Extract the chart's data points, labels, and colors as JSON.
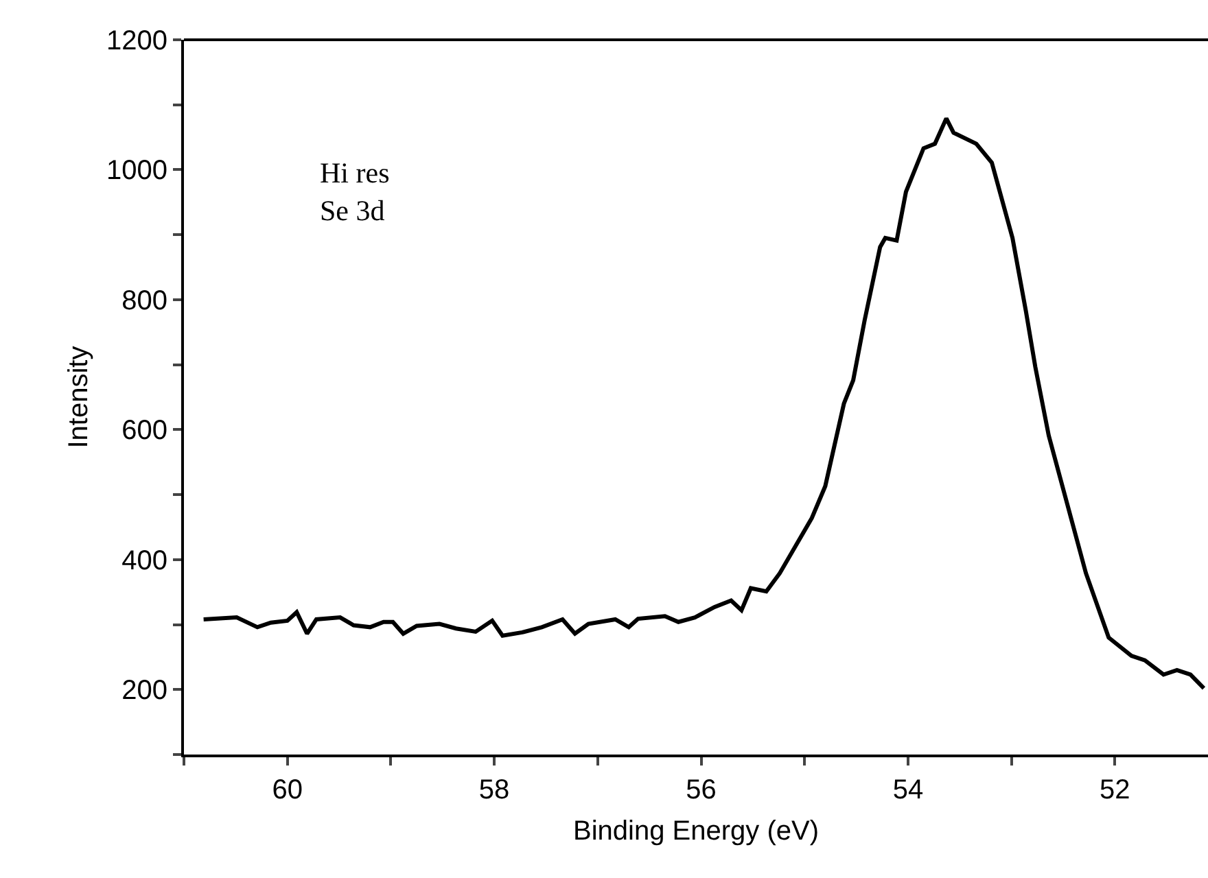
{
  "chart_data": {
    "type": "line",
    "xlabel": "Binding Energy (eV)",
    "ylabel": "Intensity",
    "annotations": [
      "Hi res\nSe 3d"
    ],
    "x": [
      60.81,
      60.49,
      60.29,
      60.16,
      60.0,
      59.91,
      59.81,
      59.72,
      59.49,
      59.36,
      59.2,
      59.07,
      58.98,
      58.88,
      58.75,
      58.53,
      58.37,
      58.18,
      58.02,
      57.92,
      57.73,
      57.54,
      57.34,
      57.22,
      57.09,
      56.83,
      56.7,
      56.61,
      56.35,
      56.22,
      56.06,
      55.87,
      55.71,
      55.61,
      55.52,
      55.37,
      55.24,
      54.93,
      54.8,
      54.62,
      54.53,
      54.42,
      54.27,
      54.22,
      54.11,
      54.02,
      53.85,
      53.74,
      53.63,
      53.56,
      53.34,
      53.19,
      52.99,
      52.86,
      52.77,
      52.64,
      52.46,
      52.28,
      52.06,
      51.84,
      51.71,
      51.53,
      51.4,
      51.27,
      51.14
    ],
    "series": [
      {
        "color": "#000000",
        "values": [
          308,
          311,
          296,
          303,
          306,
          319,
          286,
          308,
          311,
          299,
          296,
          304,
          304,
          286,
          298,
          301,
          294,
          289,
          306,
          283,
          288,
          296,
          308,
          286,
          301,
          308,
          296,
          309,
          313,
          304,
          311,
          327,
          337,
          322,
          356,
          351,
          379,
          464,
          513,
          640,
          676,
          768,
          881,
          895,
          891,
          966,
          1033,
          1040,
          1079,
          1057,
          1040,
          1011,
          895,
          782,
          697,
          591,
          485,
          379,
          280,
          252,
          245,
          223,
          230,
          223,
          202
        ]
      }
    ],
    "xlim": [
      61,
      51.1
    ],
    "ylim": [
      100,
      1200
    ],
    "xticks": [
      {
        "value": 61,
        "label": null
      },
      60,
      {
        "value": 59,
        "label": null
      },
      58,
      {
        "value": 57,
        "label": null
      },
      56,
      {
        "value": 55,
        "label": null
      },
      54,
      {
        "value": 53,
        "label": null
      },
      52
    ],
    "yticks": [
      {
        "value": 100,
        "label": null
      },
      200,
      {
        "value": 300,
        "label": null
      },
      400,
      {
        "value": 500,
        "label": null
      },
      600,
      {
        "value": 700,
        "label": null
      },
      800,
      {
        "value": 900,
        "label": null
      },
      1000,
      {
        "value": 1100,
        "label": null
      },
      1200
    ],
    "grid": false,
    "marker": "none",
    "line_style": "solid"
  }
}
